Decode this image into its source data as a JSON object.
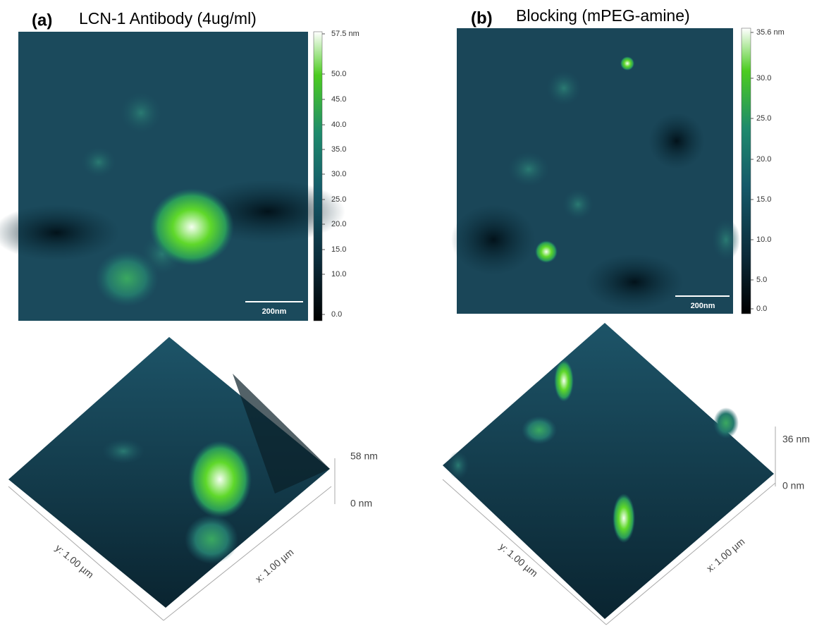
{
  "panels": [
    {
      "label": "(a)",
      "title": "LCN-1 Antibody (4ug/ml)",
      "colorbar": {
        "ticks": [
          "57.5 nm",
          "50.0",
          "45.0",
          "40.0",
          "35.0",
          "30.0",
          "25.0",
          "20.0",
          "15.0",
          "10.0",
          "0.0"
        ]
      },
      "scale_bar": "200nm",
      "surface_3d": {
        "z_max": "58 nm",
        "z_min": "0 nm",
        "y_axis": "y: 1.00 µm",
        "x_axis": "x: 1.00 µm"
      }
    },
    {
      "label": "(b)",
      "title": "Blocking (mPEG-amine)",
      "colorbar": {
        "ticks": [
          "35.6 nm",
          "30.0",
          "25.0",
          "20.0",
          "15.0",
          "10.0",
          "5.0",
          "0.0"
        ]
      },
      "scale_bar": "200nm",
      "surface_3d": {
        "z_max": "36 nm",
        "z_min": "0 nm",
        "y_axis": "y: 1.00 µm",
        "x_axis": "x: 1.00 µm"
      }
    }
  ]
}
